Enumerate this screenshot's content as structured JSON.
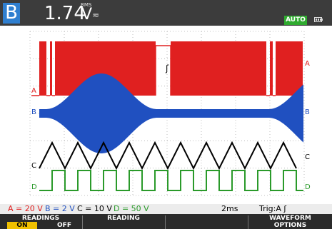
{
  "header": {
    "input_label": "B",
    "reading_value": "1.74",
    "reading_unit": "V",
    "rms_tag": "RMS",
    "acdc_symbol": "≂",
    "auto_badge": "AUTO",
    "battery_icon": "battery-icon"
  },
  "traces": [
    {
      "id": "A",
      "label": "A",
      "color": "#e02020"
    },
    {
      "id": "B",
      "label": "B",
      "color": "#2050c0"
    },
    {
      "id": "C",
      "label": "C",
      "color": "#000000"
    },
    {
      "id": "D",
      "label": "D",
      "color": "#2a9a2a"
    }
  ],
  "trigger_marker": "ʃ",
  "status": {
    "a_range": "A = 20 V",
    "b_range": "B = 2 V",
    "c_range": "C = 10 V",
    "d_range": "D = 50 V",
    "timebase": "2ms",
    "trigger": "Trig:A ʃ",
    "colors": {
      "a": "#e02020",
      "b": "#2050c0",
      "c": "#000000",
      "d": "#2a9a2a"
    }
  },
  "softkeys": [
    {
      "title": "READINGS",
      "options": [
        "ON",
        "OFF"
      ],
      "selected": "ON"
    },
    {
      "title": "READING",
      "sub": ""
    },
    {
      "title": "",
      "sub": ""
    },
    {
      "title": "WAVEFORM",
      "sub": "OPTIONS"
    }
  ]
}
